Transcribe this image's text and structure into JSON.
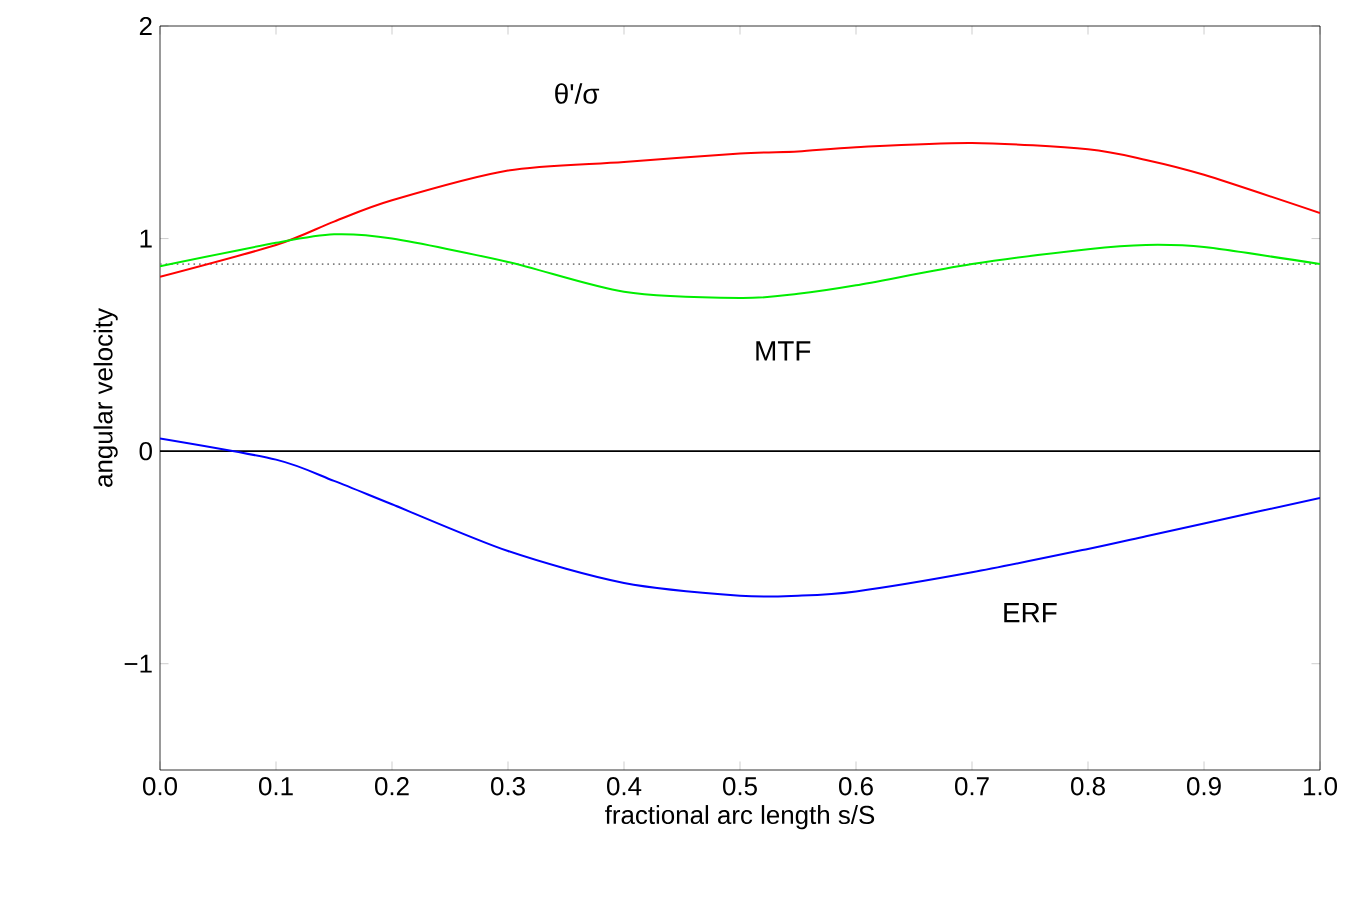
{
  "chart_data": {
    "type": "line",
    "xlabel": "fractional arc length s/S",
    "ylabel": "angular velocity",
    "xlim": [
      0,
      1
    ],
    "ylim": [
      -1.5,
      2
    ],
    "xticks": [
      {
        "value": 0,
        "label": "0.0"
      },
      {
        "value": 0.1,
        "label": "0.1"
      },
      {
        "value": 0.2,
        "label": "0.2"
      },
      {
        "value": 0.3,
        "label": "0.3"
      },
      {
        "value": 0.4,
        "label": "0.4"
      },
      {
        "value": 0.5,
        "label": "0.5"
      },
      {
        "value": 0.6,
        "label": "0.6"
      },
      {
        "value": 0.7,
        "label": "0.7"
      },
      {
        "value": 0.8,
        "label": "0.8"
      },
      {
        "value": 0.9,
        "label": "0.9"
      },
      {
        "value": 1,
        "label": "1.0"
      }
    ],
    "yticks": [
      {
        "value": -1,
        "label": "−1"
      },
      0,
      1,
      2
    ],
    "x": [
      0,
      0.1,
      0.15,
      0.2,
      0.3,
      0.4,
      0.5,
      0.55,
      0.6,
      0.7,
      0.8,
      0.85,
      0.9,
      1.0
    ],
    "series": [
      {
        "name": "θ'/σ",
        "color": "#ff0000",
        "values": [
          0.82,
          0.97,
          1.08,
          1.18,
          1.32,
          1.36,
          1.4,
          1.41,
          1.43,
          1.45,
          1.42,
          1.37,
          1.3,
          1.12
        ]
      },
      {
        "name": "MTF",
        "color": "#00ee00",
        "values": [
          0.87,
          0.98,
          1.02,
          1.0,
          0.89,
          0.75,
          0.72,
          0.74,
          0.78,
          0.88,
          0.95,
          0.97,
          0.96,
          0.88
        ]
      },
      {
        "name": "ERF",
        "color": "#0000ff",
        "values": [
          0.06,
          -0.04,
          -0.14,
          -0.25,
          -0.47,
          -0.62,
          -0.68,
          -0.68,
          -0.66,
          -0.57,
          -0.46,
          -0.4,
          -0.34,
          -0.22
        ]
      }
    ],
    "ref_lines": [
      {
        "axis": "y",
        "value": 0,
        "color": "#000000",
        "line_style": "solid"
      },
      {
        "axis": "y",
        "value": 0.88,
        "color": "#808080",
        "line_style": "dotted"
      }
    ],
    "line_style": "solid",
    "marker": "none",
    "grid": false
  }
}
